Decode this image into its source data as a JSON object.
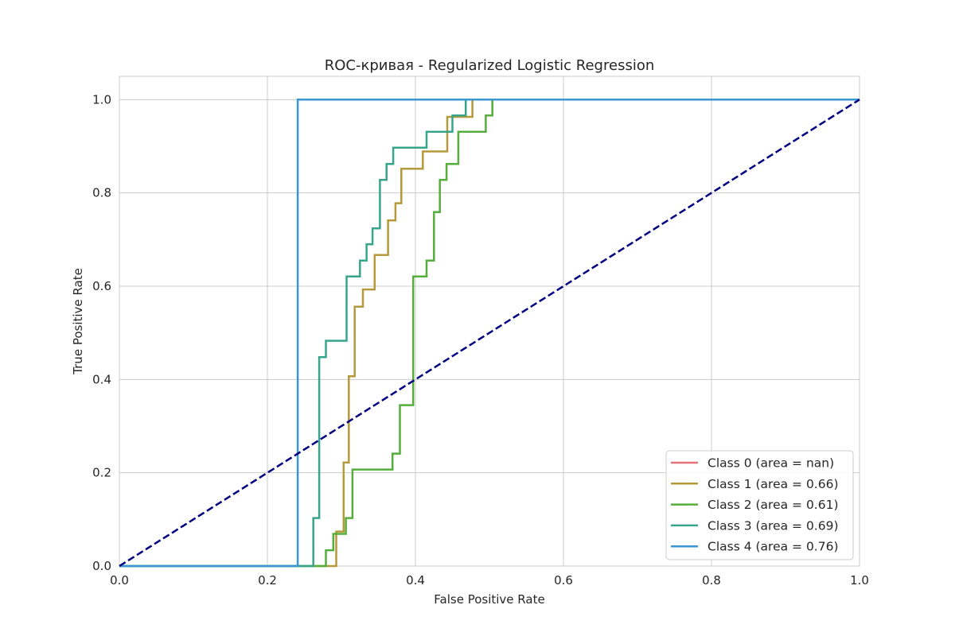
{
  "chart_data": {
    "type": "line",
    "title": "ROC-кривая - Regularized Logistic Regression",
    "xlabel": "False Positive Rate",
    "ylabel": "True Positive Rate",
    "xlim": [
      0.0,
      1.0
    ],
    "ylim": [
      0.0,
      1.05
    ],
    "xticks": [
      "0.0",
      "0.2",
      "0.4",
      "0.6",
      "0.8",
      "1.0"
    ],
    "yticks": [
      "0.0",
      "0.2",
      "0.4",
      "0.6",
      "0.8",
      "1.0"
    ],
    "grid": true,
    "legend_position": "lower-right",
    "series": [
      {
        "name": "Class 0 (area = nan)",
        "color": "#e8737a",
        "style": "step",
        "points": []
      },
      {
        "name": "Class 1 (area = 0.66)",
        "color": "#b5993a",
        "style": "step",
        "points": [
          [
            0.0,
            0.0
          ],
          [
            0.293,
            0.0
          ],
          [
            0.293,
            0.074
          ],
          [
            0.303,
            0.074
          ],
          [
            0.303,
            0.222
          ],
          [
            0.31,
            0.222
          ],
          [
            0.31,
            0.407
          ],
          [
            0.318,
            0.407
          ],
          [
            0.318,
            0.556
          ],
          [
            0.329,
            0.556
          ],
          [
            0.329,
            0.593
          ],
          [
            0.345,
            0.593
          ],
          [
            0.345,
            0.667
          ],
          [
            0.363,
            0.667
          ],
          [
            0.363,
            0.741
          ],
          [
            0.373,
            0.741
          ],
          [
            0.373,
            0.778
          ],
          [
            0.381,
            0.778
          ],
          [
            0.381,
            0.852
          ],
          [
            0.41,
            0.852
          ],
          [
            0.41,
            0.889
          ],
          [
            0.443,
            0.889
          ],
          [
            0.443,
            0.963
          ],
          [
            0.477,
            0.963
          ],
          [
            0.477,
            1.0
          ],
          [
            1.0,
            1.0
          ]
        ]
      },
      {
        "name": "Class 2 (area = 0.61)",
        "color": "#55ad3c",
        "style": "step",
        "points": [
          [
            0.0,
            0.0
          ],
          [
            0.279,
            0.0
          ],
          [
            0.279,
            0.034
          ],
          [
            0.289,
            0.034
          ],
          [
            0.289,
            0.069
          ],
          [
            0.306,
            0.069
          ],
          [
            0.306,
            0.103
          ],
          [
            0.315,
            0.103
          ],
          [
            0.315,
            0.207
          ],
          [
            0.369,
            0.207
          ],
          [
            0.369,
            0.241
          ],
          [
            0.379,
            0.241
          ],
          [
            0.379,
            0.345
          ],
          [
            0.397,
            0.345
          ],
          [
            0.397,
            0.621
          ],
          [
            0.415,
            0.621
          ],
          [
            0.415,
            0.655
          ],
          [
            0.425,
            0.655
          ],
          [
            0.425,
            0.759
          ],
          [
            0.433,
            0.759
          ],
          [
            0.433,
            0.828
          ],
          [
            0.442,
            0.828
          ],
          [
            0.442,
            0.862
          ],
          [
            0.458,
            0.862
          ],
          [
            0.458,
            0.931
          ],
          [
            0.495,
            0.931
          ],
          [
            0.495,
            0.966
          ],
          [
            0.504,
            0.966
          ],
          [
            0.504,
            1.0
          ],
          [
            1.0,
            1.0
          ]
        ]
      },
      {
        "name": "Class 3 (area = 0.69)",
        "color": "#37a58c",
        "style": "step",
        "points": [
          [
            0.0,
            0.0
          ],
          [
            0.262,
            0.0
          ],
          [
            0.262,
            0.103
          ],
          [
            0.27,
            0.103
          ],
          [
            0.27,
            0.448
          ],
          [
            0.279,
            0.448
          ],
          [
            0.279,
            0.483
          ],
          [
            0.307,
            0.483
          ],
          [
            0.307,
            0.621
          ],
          [
            0.325,
            0.621
          ],
          [
            0.325,
            0.655
          ],
          [
            0.334,
            0.655
          ],
          [
            0.334,
            0.69
          ],
          [
            0.342,
            0.69
          ],
          [
            0.342,
            0.724
          ],
          [
            0.352,
            0.724
          ],
          [
            0.352,
            0.828
          ],
          [
            0.361,
            0.828
          ],
          [
            0.361,
            0.862
          ],
          [
            0.37,
            0.862
          ],
          [
            0.37,
            0.897
          ],
          [
            0.415,
            0.897
          ],
          [
            0.415,
            0.931
          ],
          [
            0.45,
            0.931
          ],
          [
            0.45,
            0.966
          ],
          [
            0.468,
            0.966
          ],
          [
            0.468,
            1.0
          ],
          [
            1.0,
            1.0
          ]
        ]
      },
      {
        "name": "Class 4 (area = 0.76)",
        "color": "#3a97d6",
        "style": "step",
        "points": [
          [
            0.0,
            0.0
          ],
          [
            0.241,
            0.0
          ],
          [
            0.241,
            1.0
          ],
          [
            1.0,
            1.0
          ]
        ]
      }
    ],
    "reference_line": {
      "points": [
        [
          0.0,
          0.0
        ],
        [
          1.0,
          1.0
        ]
      ],
      "color": "#000080",
      "style": "dashed"
    }
  }
}
